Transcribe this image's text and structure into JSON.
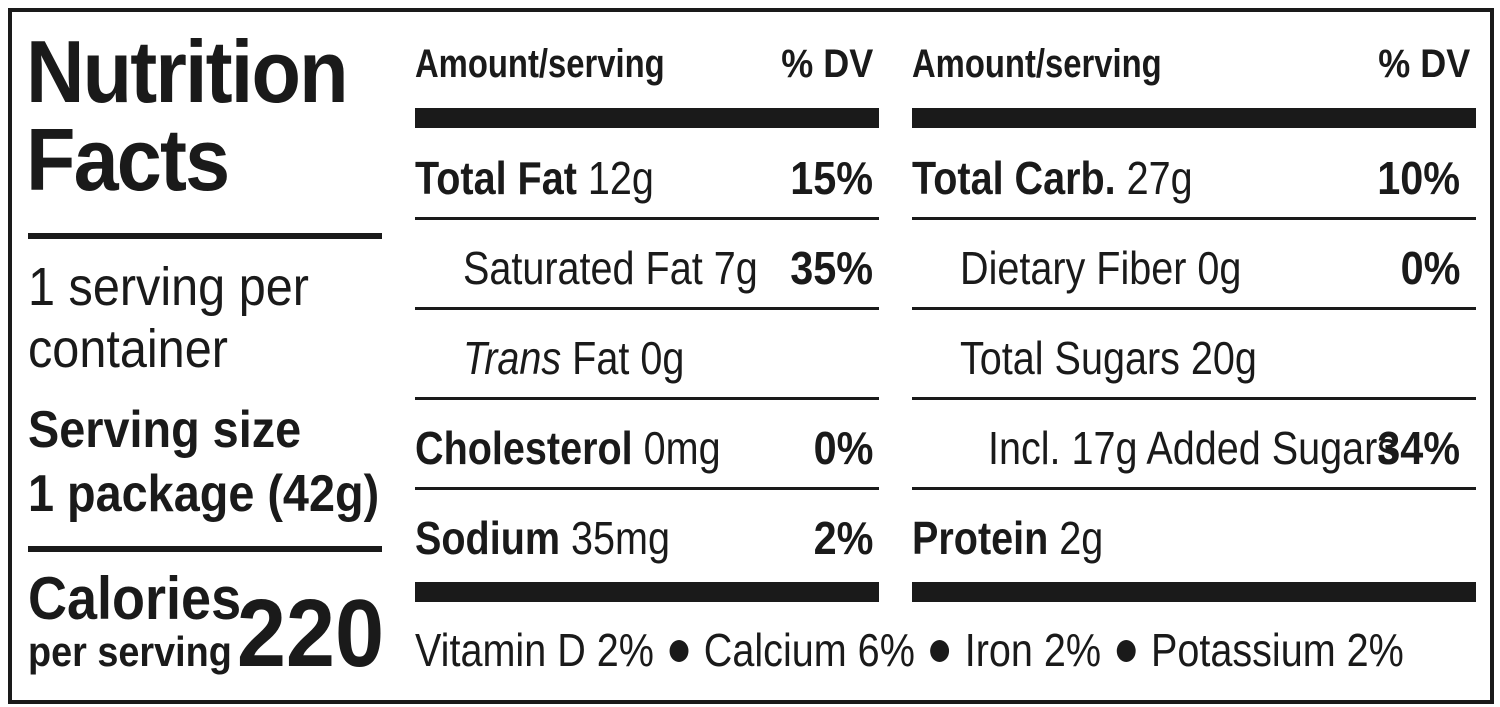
{
  "title_line1": "Nutrition",
  "title_line2": "Facts",
  "servings_line1": "1 serving per",
  "servings_line2": "container",
  "serving_size_label": "Serving size",
  "serving_size_value": "1 package (42g)",
  "calories_label": "Calories",
  "calories_sub": "per serving",
  "calories_value": "220",
  "left_column": {
    "header_amount": "Amount/serving",
    "header_dv": "% DV",
    "rows": [
      {
        "name": "Total Fat",
        "amount": "12g",
        "dv": "15%"
      },
      {
        "name": "Saturated Fat 7g",
        "dv": "35%"
      },
      {
        "name_italic": "Trans",
        "name": "Fat 0g",
        "dv": ""
      },
      {
        "name": "Cholesterol",
        "amount": "0mg",
        "dv": "0%"
      },
      {
        "name": "Sodium",
        "amount": "35mg",
        "dv": "2%"
      }
    ]
  },
  "right_column": {
    "header_amount": "Amount/serving",
    "header_dv": "% DV",
    "rows": [
      {
        "name": "Total Carb.",
        "amount": "27g",
        "dv": "10%"
      },
      {
        "name": "Dietary Fiber 0g",
        "dv": "0%"
      },
      {
        "name": "Total Sugars 20g",
        "dv": ""
      },
      {
        "name": "Incl. 17g Added Sugars",
        "dv": "34%"
      },
      {
        "name": "Protein",
        "amount": "2g",
        "dv": ""
      }
    ]
  },
  "vitamins": [
    "Vitamin D 2%",
    "Calcium 6%",
    "Iron 2%",
    "Potassium 2%"
  ],
  "colors": {
    "ink": "#1a1a1a",
    "background": "#ffffff"
  }
}
